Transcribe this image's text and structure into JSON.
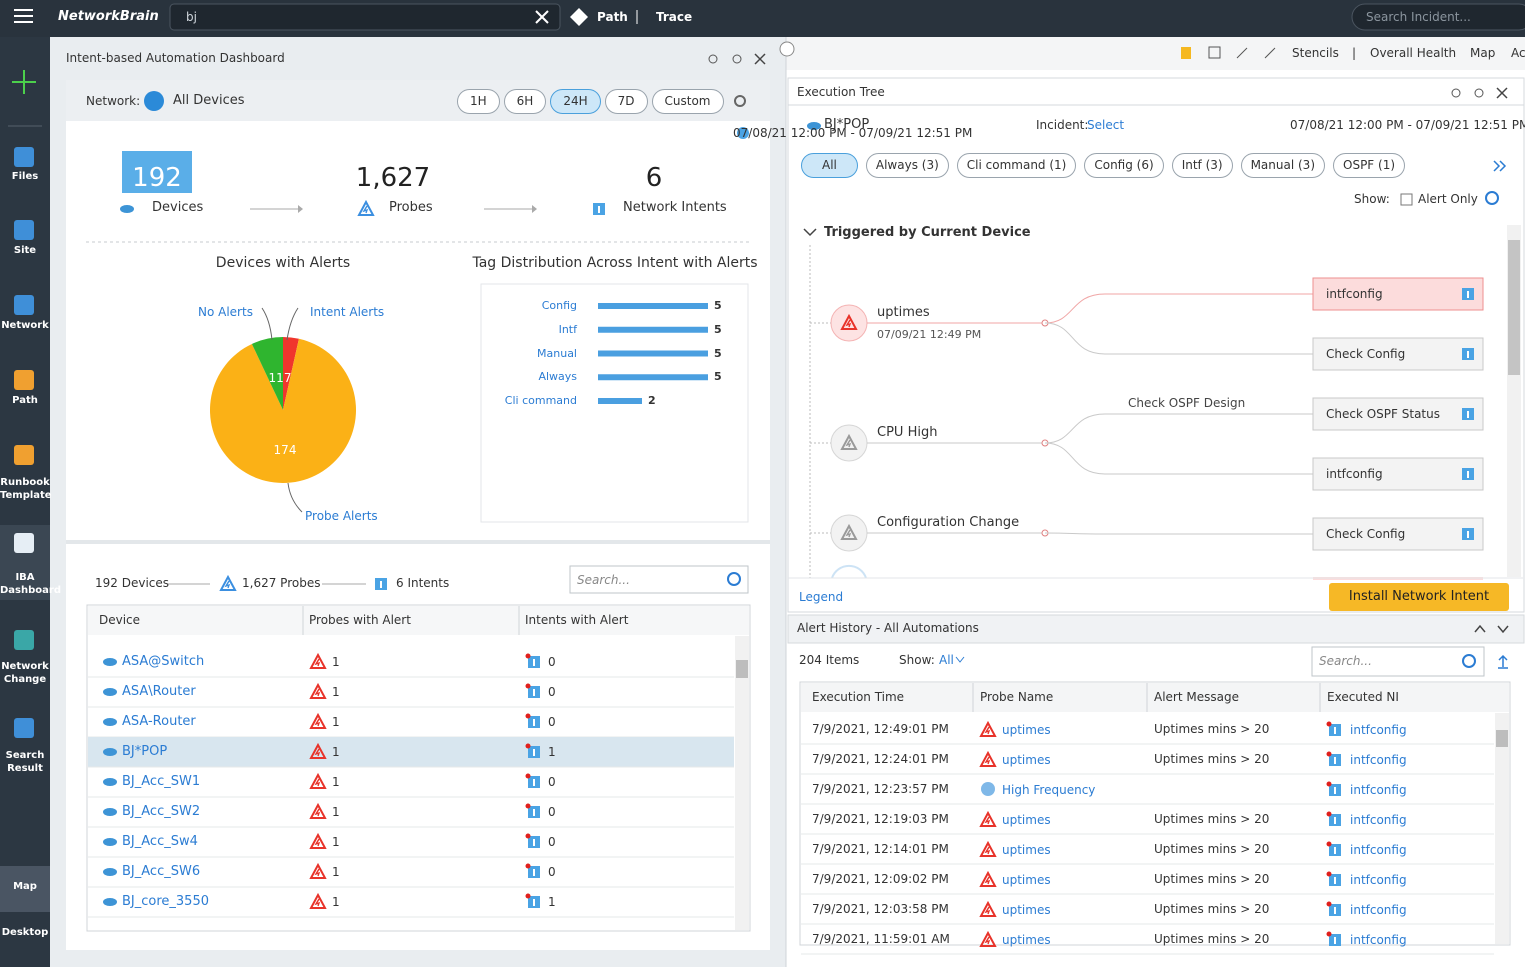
{
  "top_bar": {
    "brand": "NetworkBrain",
    "search": "bj",
    "path": "Path",
    "trace": "Trace",
    "search_incident": "Search Incident..."
  },
  "sidebar": [
    {
      "label": "Files"
    },
    {
      "label": "Site"
    },
    {
      "label": "Network"
    },
    {
      "label": "Path"
    },
    {
      "label": "Runbook Template"
    },
    {
      "label": "IBA Dashboard",
      "active": true
    },
    {
      "label": "Network Change"
    },
    {
      "label": "Search Result"
    },
    {
      "label": "Map"
    },
    {
      "label": "Desktop"
    }
  ],
  "dashboard": {
    "title": "Intent-based Automation Dashboard",
    "network_label": "Network:",
    "network_value": "All Devices",
    "time_ranges": [
      {
        "label": "1H"
      },
      {
        "label": "6H"
      },
      {
        "label": "24H",
        "active": true
      },
      {
        "label": "7D"
      },
      {
        "label": "Custom"
      }
    ],
    "date_range": "07/08/21 12:00 PM - 07/09/21 12:51 PM",
    "kpis": [
      {
        "value": "192",
        "label": "Devices"
      },
      {
        "value": "1,627",
        "label": "Probes"
      },
      {
        "value": "6",
        "label": "Network Intents"
      }
    ],
    "pie": {
      "type": "pie",
      "title": "Devices with Alerts",
      "slices": [
        {
          "name": "Intent Alerts",
          "value": 3.5,
          "color": "#f0362d"
        },
        {
          "name": "Probe Alerts",
          "value": 89.5,
          "color": "#fbb116"
        },
        {
          "name": "No Alerts",
          "value": 7,
          "color": "#2fb52f"
        }
      ],
      "labels": [
        "117",
        "174"
      ]
    },
    "tag_chart": {
      "type": "bar",
      "title": "Tag Distribution Across Intent with Alerts",
      "categories": [
        "Config",
        "Intf",
        "Manual",
        "Always",
        "Cli command"
      ],
      "values": [
        5,
        5,
        5,
        5,
        2
      ],
      "color": "#4a9fe0"
    },
    "summary": {
      "devices": "192  Devices",
      "probes": "1,627  Probes",
      "intents": "6  Intents"
    },
    "search_placeholder": "Search...",
    "table": {
      "columns": [
        "Device",
        "Probes with Alert",
        "Intents with Alert"
      ],
      "rows": [
        [
          "ASA@Switch",
          1,
          0
        ],
        [
          "ASA\\Router",
          1,
          0
        ],
        [
          "ASA-Router",
          1,
          0
        ],
        [
          "BJ*POP",
          1,
          1
        ],
        [
          "BJ_Acc_SW1",
          1,
          0
        ],
        [
          "BJ_Acc_SW2",
          1,
          0
        ],
        [
          "BJ_Acc_Sw4",
          1,
          0
        ],
        [
          "BJ_Acc_SW6",
          1,
          0
        ],
        [
          "BJ_core_3550",
          1,
          1
        ]
      ],
      "selected_row": "BJ*POP"
    }
  },
  "toolbar": [
    "Stencils",
    "|",
    "Overall Health",
    "Map",
    "Ac"
  ],
  "execution_tree": {
    "title": "Execution Tree",
    "device": "BJ*POP",
    "incident_label": "Incident:",
    "incident_value": "Select",
    "date_range": "07/08/21 12:00 PM - 07/09/21 12:51 PM",
    "filters": [
      {
        "label": "All",
        "active": true
      },
      {
        "label": "Always (3)"
      },
      {
        "label": "Cli command (1)"
      },
      {
        "label": "Config (6)"
      },
      {
        "label": "Intf (3)"
      },
      {
        "label": "Manual (3)"
      },
      {
        "label": "OSPF (1)"
      }
    ],
    "show_label": "Show:",
    "alert_only": "Alert Only",
    "section": "Triggered by Current Device",
    "probes": [
      {
        "name": "uptimes",
        "time": "07/09/21 12:49 PM",
        "alert": true,
        "intents": [
          {
            "name": "intfconfig",
            "alert": true
          },
          {
            "name": "Check Config"
          }
        ]
      },
      {
        "name": "CPU High",
        "edge_label": "Check OSPF Design",
        "intents": [
          {
            "name": "Check OSPF Status"
          },
          {
            "name": "intfconfig"
          }
        ]
      },
      {
        "name": "Configuration Change",
        "intents": [
          {
            "name": "Check Config"
          }
        ]
      }
    ],
    "legend": "Legend",
    "install": "Install Network Intent"
  },
  "alert_history": {
    "title": "Alert History -  All Automations",
    "items": "204 Items",
    "show_label": "Show:",
    "show_value": "All",
    "search": "Search...",
    "columns": [
      "Execution Time",
      "Probe Name",
      "Alert Message",
      "Executed NI"
    ],
    "rows": [
      [
        "7/9/2021, 12:49:01 PM",
        "uptimes",
        "Uptimes mins > 20",
        "intfconfig"
      ],
      [
        "7/9/2021, 12:24:01 PM",
        "uptimes",
        "Uptimes mins > 20",
        "intfconfig"
      ],
      [
        "7/9/2021, 12:23:57 PM",
        "High Frequency",
        null,
        "intfconfig"
      ],
      [
        "7/9/2021, 12:19:03 PM",
        "uptimes",
        "Uptimes mins > 20",
        "intfconfig"
      ],
      [
        "7/9/2021, 12:14:01 PM",
        "uptimes",
        "Uptimes mins > 20",
        "intfconfig"
      ],
      [
        "7/9/2021, 12:09:02 PM",
        "uptimes",
        "Uptimes mins > 20",
        "intfconfig"
      ],
      [
        "7/9/2021, 12:03:58 PM",
        "uptimes",
        "Uptimes mins > 20",
        "intfconfig"
      ],
      [
        "7/9/2021, 11:59:01 AM",
        "uptimes",
        "Uptimes mins > 20",
        "intfconfig"
      ]
    ]
  }
}
